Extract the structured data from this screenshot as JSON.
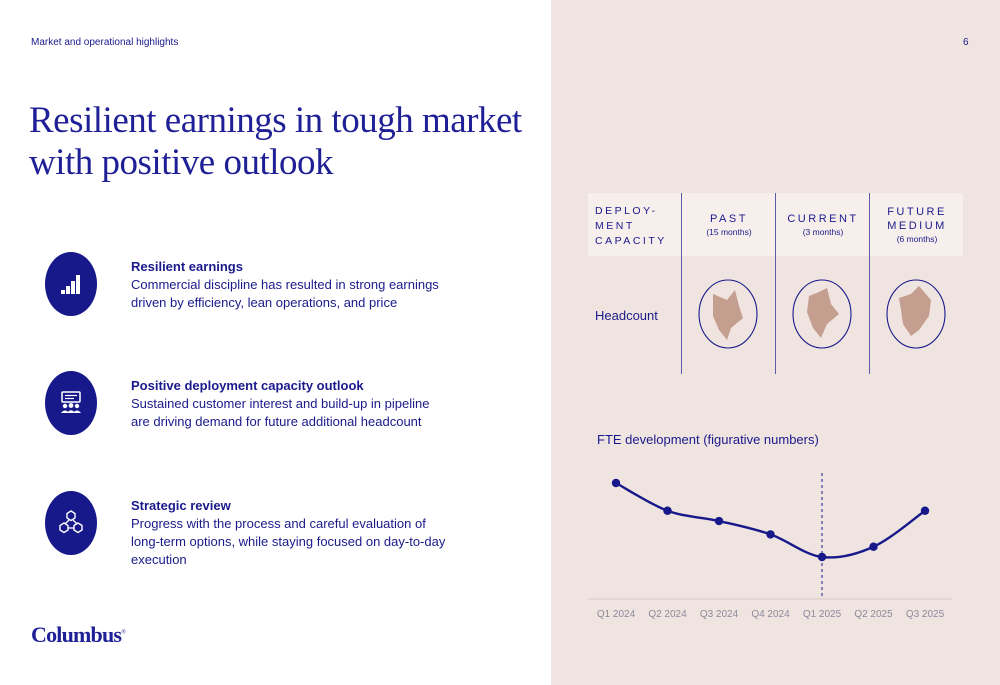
{
  "header": {
    "section_label": "Market and operational highlights",
    "page_number": "6"
  },
  "title": "Resilient earnings in tough market with positive outlook",
  "highlights": [
    {
      "icon": "bar-chart-icon",
      "title": "Resilient earnings",
      "description": "Commercial discipline has resulted in strong earnings driven by efficiency, lean operations, and price"
    },
    {
      "icon": "team-presentation-icon",
      "title": "Positive deployment capacity outlook",
      "description": "Sustained customer interest and build-up in pipeline are driving demand for future additional headcount"
    },
    {
      "icon": "network-cubes-icon",
      "title": "Strategic review",
      "description": "Progress with the process and careful evaluation of long-term options, while staying focused on day-to-day execution"
    }
  ],
  "logo": {
    "text": "Columbus",
    "mark": "®"
  },
  "deployment": {
    "capacity_label_lines": [
      "DEPLOY-",
      "MENT",
      "CAPACITY"
    ],
    "columns": [
      {
        "title_lines": [
          "PAST"
        ],
        "subtitle": "(15 months)"
      },
      {
        "title_lines": [
          "CURRENT"
        ],
        "subtitle": "(3 months)"
      },
      {
        "title_lines": [
          "FUTURE",
          "MEDIUM"
        ],
        "subtitle": "(6 months)"
      }
    ],
    "row_label": "Headcount",
    "colors": {
      "shape_fill": "#c49e8f",
      "outline": "#1a1a8c"
    }
  },
  "fte": {
    "title": "FTE development (figurative numbers)"
  },
  "chart_data": {
    "type": "line",
    "title": "FTE development (figurative numbers)",
    "categories": [
      "Q1 2024",
      "Q2 2024",
      "Q3 2024",
      "Q4 2024",
      "Q1 2025",
      "Q2 2025",
      "Q3 2025"
    ],
    "series": [
      {
        "values": [
          100,
          73,
          63,
          50,
          28,
          38,
          73
        ],
        "color": "#17188a"
      }
    ],
    "marker_category": "Q1 2025",
    "grid": false,
    "y_axis": false
  }
}
